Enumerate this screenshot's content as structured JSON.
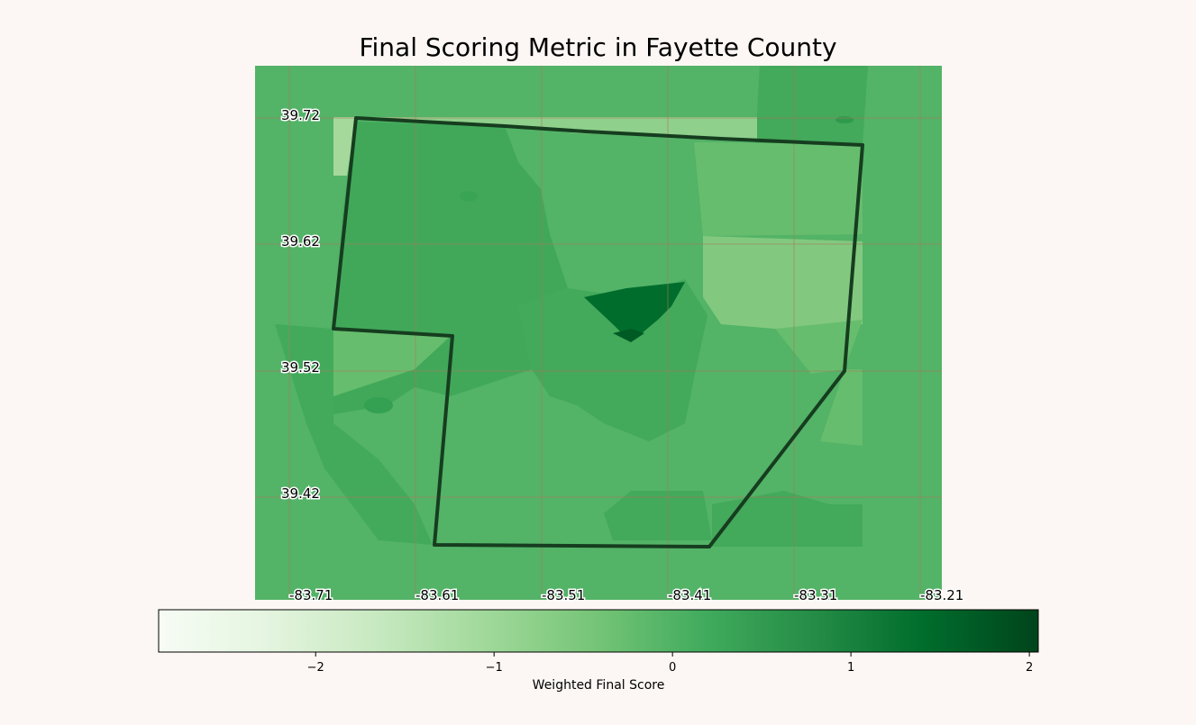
{
  "title": "Final Scoring Metric in Fayette County",
  "lat_labels": [
    "39.72",
    "39.62",
    "39.52",
    "39.42"
  ],
  "lon_labels": [
    "-83.71",
    "-83.61",
    "-83.51",
    "-83.41",
    "-83.31",
    "-83.21"
  ],
  "colorbar": {
    "label": "Weighted Final Score",
    "colormap": "Greens",
    "range": [
      -2.88,
      2.05
    ],
    "tick_labels": [
      "−2",
      "−1",
      "0",
      "1",
      "2"
    ],
    "tick_values": [
      -2,
      -1,
      0,
      1,
      2
    ]
  },
  "colors": {
    "background": "#fcf7f4",
    "base_green": "#53b367",
    "mid_green": "#41a85a",
    "light_green": "#67bd6e",
    "pale_green": "#82c97f",
    "very_pale_green": "#a5d99c",
    "dark_green": "#006d2c",
    "county_outline": "#163d1f",
    "graticule": "#a57a5a"
  }
}
